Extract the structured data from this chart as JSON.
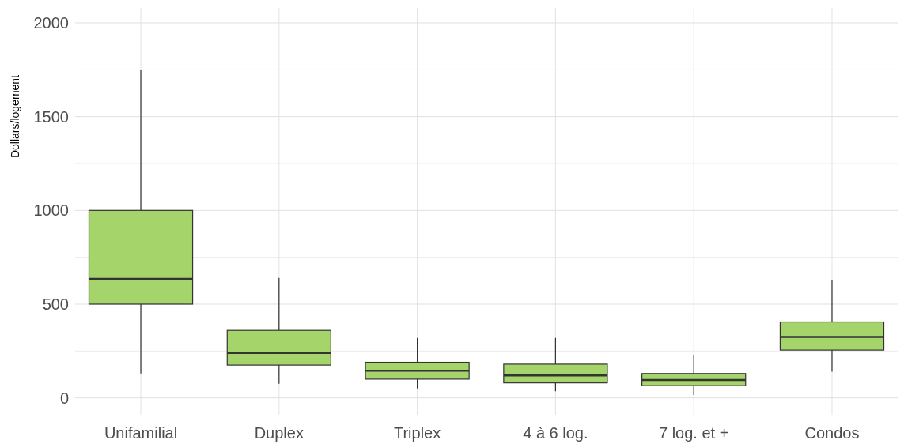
{
  "chart_data": {
    "type": "box",
    "ylabel": "Dollars/logement",
    "categories": [
      "Unifamilial",
      "Duplex",
      "Triplex",
      "4 à 6 log.",
      "7 log. et +",
      "Condos"
    ],
    "color": "#a5d46a",
    "boxes": [
      {
        "low": 130,
        "q1": 500,
        "median": 635,
        "q3": 1000,
        "high": 1750
      },
      {
        "low": 75,
        "q1": 175,
        "median": 240,
        "q3": 360,
        "high": 640
      },
      {
        "low": 50,
        "q1": 100,
        "median": 145,
        "q3": 190,
        "high": 320
      },
      {
        "low": 35,
        "q1": 80,
        "median": 120,
        "q3": 180,
        "high": 320
      },
      {
        "low": 15,
        "q1": 65,
        "median": 95,
        "q3": 130,
        "high": 230
      },
      {
        "low": 140,
        "q1": 255,
        "median": 325,
        "q3": 405,
        "high": 630
      }
    ],
    "ylim": [
      -90,
      2080
    ],
    "yticks": [
      0,
      {
        "value": 250,
        "label": null
      },
      500,
      {
        "value": 750,
        "label": null
      },
      1000,
      {
        "value": 1250,
        "label": null
      },
      1500,
      {
        "value": 1750,
        "label": null
      },
      2000
    ],
    "grid": true
  }
}
